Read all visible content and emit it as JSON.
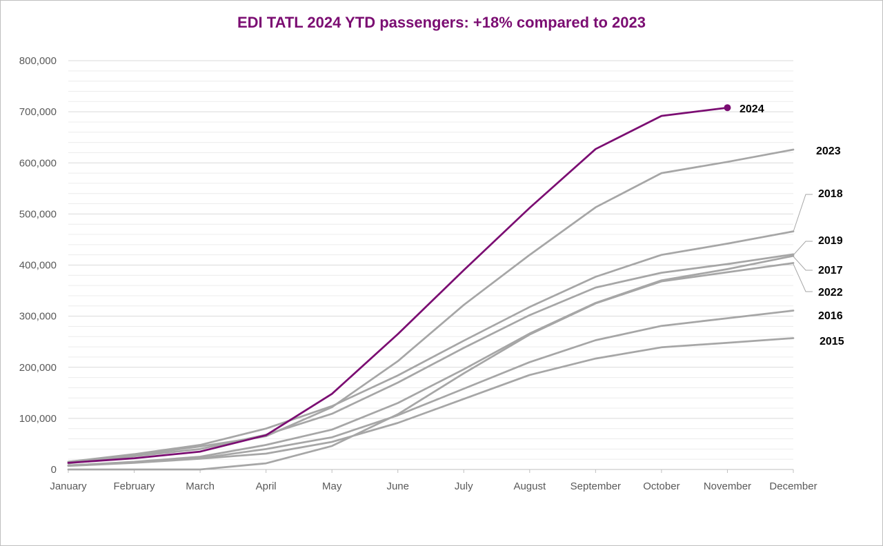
{
  "chart_data": {
    "type": "line",
    "title": "EDI TATL 2024 YTD passengers: +18% compared to 2023",
    "x": [
      "January",
      "February",
      "March",
      "April",
      "May",
      "June",
      "July",
      "August",
      "September",
      "October",
      "November",
      "December"
    ],
    "ylim": [
      0,
      800000
    ],
    "yticks": [
      0,
      100000,
      200000,
      300000,
      400000,
      500000,
      600000,
      700000,
      800000
    ],
    "ytick_labels": [
      "0",
      "100,000",
      "200,000",
      "300,000",
      "400,000",
      "500,000",
      "600,000",
      "700,000",
      "800,000"
    ],
    "grid": "horizontal major and minor",
    "legend": "none (series labeled at line ends)",
    "highlight_color": "#7b0d72",
    "other_color": "#a6a6a6",
    "series": [
      {
        "name": "2024",
        "values": [
          13000,
          22000,
          35000,
          67000,
          148000,
          265000,
          390000,
          512000,
          627000,
          692000,
          708000,
          null
        ]
      },
      {
        "name": "2023",
        "values": [
          15000,
          28000,
          45000,
          65000,
          122000,
          212000,
          322000,
          420000,
          513000,
          580000,
          602000,
          626000
        ]
      },
      {
        "name": "2018",
        "values": [
          15000,
          30000,
          48000,
          80000,
          124000,
          184000,
          252000,
          318000,
          377000,
          420000,
          442000,
          466000
        ]
      },
      {
        "name": "2019",
        "values": [
          12000,
          26000,
          40000,
          68000,
          109000,
          170000,
          238000,
          302000,
          356000,
          385000,
          402000,
          421000
        ]
      },
      {
        "name": "2017",
        "values": [
          8000,
          15000,
          25000,
          48000,
          78000,
          130000,
          196000,
          266000,
          326000,
          370000,
          392000,
          418000
        ]
      },
      {
        "name": "2022",
        "values": [
          0,
          0,
          0,
          12000,
          46000,
          108000,
          188000,
          264000,
          325000,
          368000,
          386000,
          404000
        ]
      },
      {
        "name": "2016",
        "values": [
          8000,
          14000,
          22000,
          40000,
          63000,
          106000,
          158000,
          210000,
          253000,
          281000,
          296000,
          311000
        ]
      },
      {
        "name": "2015",
        "values": [
          7000,
          13000,
          21000,
          31000,
          54000,
          91000,
          138000,
          185000,
          217000,
          239000,
          248000,
          257000
        ]
      }
    ]
  }
}
